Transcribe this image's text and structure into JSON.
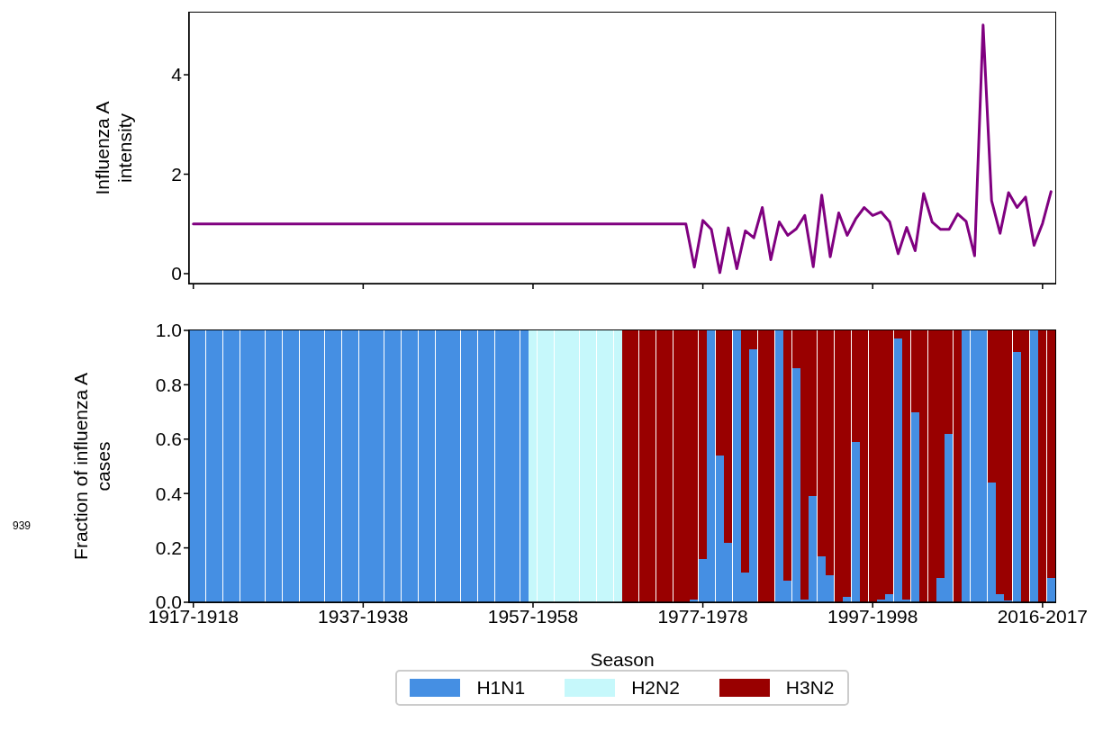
{
  "chart_data": [
    {
      "type": "line",
      "ylabel": "Influenza A\nintensity",
      "categories": [
        null,
        null,
        null,
        null,
        null,
        null,
        null,
        null,
        null,
        null,
        null,
        null,
        null,
        null,
        null,
        null,
        null,
        null,
        null,
        null,
        null,
        null,
        null,
        null,
        null,
        null,
        null,
        null,
        null,
        null,
        null,
        null,
        null,
        null,
        null,
        null,
        null,
        null,
        null,
        null,
        null,
        null,
        null,
        null,
        null,
        null,
        null,
        null,
        null,
        null,
        null,
        null,
        null,
        null,
        null,
        null,
        null,
        null,
        null,
        null,
        null,
        null,
        null,
        null,
        null,
        null,
        null,
        null,
        null,
        null,
        null,
        null,
        null,
        null,
        null,
        null,
        null,
        null,
        null,
        null,
        null,
        null,
        null,
        null,
        null,
        null,
        null,
        null,
        null,
        null,
        null,
        null,
        null,
        null,
        null,
        null,
        null,
        null,
        null,
        null,
        null,
        null
      ],
      "series": [
        {
          "color": "#800080",
          "values": [
            1,
            1,
            1,
            1,
            1,
            1,
            1,
            1,
            1,
            1,
            1,
            1,
            1,
            1,
            1,
            1,
            1,
            1,
            1,
            1,
            1,
            1,
            1,
            1,
            1,
            1,
            1,
            1,
            1,
            1,
            1,
            1,
            1,
            1,
            1,
            1,
            1,
            1,
            1,
            1,
            1,
            1,
            1,
            1,
            1,
            1,
            1,
            1,
            1,
            1,
            1,
            1,
            1,
            1,
            1,
            1,
            1,
            1,
            1,
            0.13,
            1.07,
            0.89,
            0.02,
            0.92,
            0.1,
            0.86,
            0.72,
            1.33,
            0.28,
            1.04,
            0.77,
            0.9,
            1.17,
            0.14,
            1.58,
            0.34,
            1.22,
            0.77,
            1.1,
            1.33,
            1.17,
            1.24,
            1.04,
            0.4,
            0.93,
            0.46,
            1.61,
            1.04,
            0.89,
            0.89,
            1.2,
            1.05,
            0.36,
            5.0,
            1.47,
            0.81,
            1.63,
            1.33,
            1.54,
            0.57,
            1.01,
            1.65
          ]
        }
      ],
      "ylim": [
        -0.2,
        5.25
      ],
      "yticks": [
        0,
        2,
        4
      ]
    },
    {
      "type": "bar",
      "stacked": true,
      "xlabel": "Season",
      "ylabel": "Fraction of influenza A\ncases",
      "legend": "bottom",
      "annotations": [
        "939"
      ],
      "categories": [
        "1917-1918",
        null,
        null,
        null,
        null,
        null,
        null,
        null,
        null,
        null,
        null,
        null,
        null,
        null,
        null,
        null,
        null,
        null,
        null,
        null,
        "1937-1938",
        null,
        null,
        null,
        null,
        null,
        null,
        null,
        null,
        null,
        null,
        null,
        null,
        null,
        null,
        null,
        null,
        null,
        null,
        null,
        "1957-1958",
        null,
        null,
        null,
        null,
        null,
        null,
        null,
        null,
        null,
        null,
        null,
        null,
        null,
        null,
        null,
        null,
        null,
        null,
        null,
        "1977-1978",
        null,
        null,
        null,
        null,
        null,
        null,
        null,
        null,
        null,
        null,
        null,
        null,
        null,
        null,
        null,
        null,
        null,
        null,
        null,
        "1997-1998",
        null,
        null,
        null,
        null,
        null,
        null,
        null,
        null,
        null,
        null,
        null,
        null,
        null,
        null,
        null,
        null,
        null,
        null,
        null,
        "2016-2017",
        null
      ],
      "series": [
        {
          "name": "H1N1",
          "color": "#458fe3",
          "values": [
            1,
            1,
            1,
            1,
            1,
            1,
            1,
            1,
            1,
            1,
            1,
            1,
            1,
            1,
            1,
            1,
            1,
            1,
            1,
            1,
            1,
            1,
            1,
            1,
            1,
            1,
            1,
            1,
            1,
            1,
            1,
            1,
            1,
            1,
            1,
            1,
            1,
            1,
            1,
            1,
            0,
            0,
            0,
            0,
            0,
            0,
            0,
            0,
            0,
            0,
            0,
            0,
            0,
            0,
            0,
            0,
            0,
            0,
            0,
            0.01,
            0.16,
            1,
            0.54,
            0.22,
            1,
            0.11,
            0.93,
            0,
            0,
            1,
            0.08,
            0.86,
            0.01,
            0.39,
            0.17,
            0.1,
            0,
            0.02,
            0.59,
            0,
            0,
            0.01,
            0.03,
            0.97,
            0.01,
            0.7,
            0,
            0,
            0.09,
            0.62,
            0,
            1,
            1,
            1,
            0.44,
            0.03,
            0.005,
            0.92,
            0,
            1,
            0,
            0.09
          ]
        },
        {
          "name": "H2N2",
          "color": "#c6f8fb",
          "values": [
            0,
            0,
            0,
            0,
            0,
            0,
            0,
            0,
            0,
            0,
            0,
            0,
            0,
            0,
            0,
            0,
            0,
            0,
            0,
            0,
            0,
            0,
            0,
            0,
            0,
            0,
            0,
            0,
            0,
            0,
            0,
            0,
            0,
            0,
            0,
            0,
            0,
            0,
            0,
            0,
            1,
            1,
            1,
            1,
            1,
            1,
            1,
            1,
            1,
            1,
            1,
            0,
            0,
            0,
            0,
            0,
            0,
            0,
            0,
            0,
            0,
            0,
            0,
            0,
            0,
            0,
            0,
            0,
            0,
            0,
            0,
            0,
            0,
            0,
            0,
            0,
            0,
            0,
            0,
            0,
            0,
            0,
            0,
            0,
            0,
            0,
            0,
            0,
            0,
            0,
            0,
            0,
            0,
            0,
            0,
            0,
            0,
            0,
            0,
            0,
            0,
            0
          ]
        },
        {
          "name": "H3N2",
          "color": "#990000",
          "values": [
            0,
            0,
            0,
            0,
            0,
            0,
            0,
            0,
            0,
            0,
            0,
            0,
            0,
            0,
            0,
            0,
            0,
            0,
            0,
            0,
            0,
            0,
            0,
            0,
            0,
            0,
            0,
            0,
            0,
            0,
            0,
            0,
            0,
            0,
            0,
            0,
            0,
            0,
            0,
            0,
            0,
            0,
            0,
            0,
            0,
            0,
            0,
            0,
            0,
            0,
            0,
            1,
            1,
            1,
            1,
            1,
            1,
            1,
            1,
            0.99,
            0.84,
            0,
            0.46,
            0.78,
            0,
            0.89,
            0.07,
            1,
            1,
            0,
            0.92,
            0.14,
            0.99,
            0.61,
            0.83,
            0.9,
            1,
            0.98,
            0.41,
            1,
            1,
            0.99,
            0.97,
            0.03,
            0.99,
            0.3,
            1,
            1,
            0.91,
            0.38,
            1,
            0,
            0,
            0,
            0.56,
            0.97,
            0.995,
            0.08,
            1,
            0,
            1,
            0.91
          ]
        }
      ],
      "ylim": [
        0,
        1
      ],
      "yticks": [
        {
          "value": 0,
          "label": "0.0"
        },
        {
          "value": 0.2,
          "label": "0.2"
        },
        {
          "value": 0.4,
          "label": "0.4"
        },
        {
          "value": 0.6,
          "label": "0.6"
        },
        {
          "value": 0.8,
          "label": "0.8"
        },
        {
          "value": 1,
          "label": "1.0"
        }
      ]
    }
  ]
}
